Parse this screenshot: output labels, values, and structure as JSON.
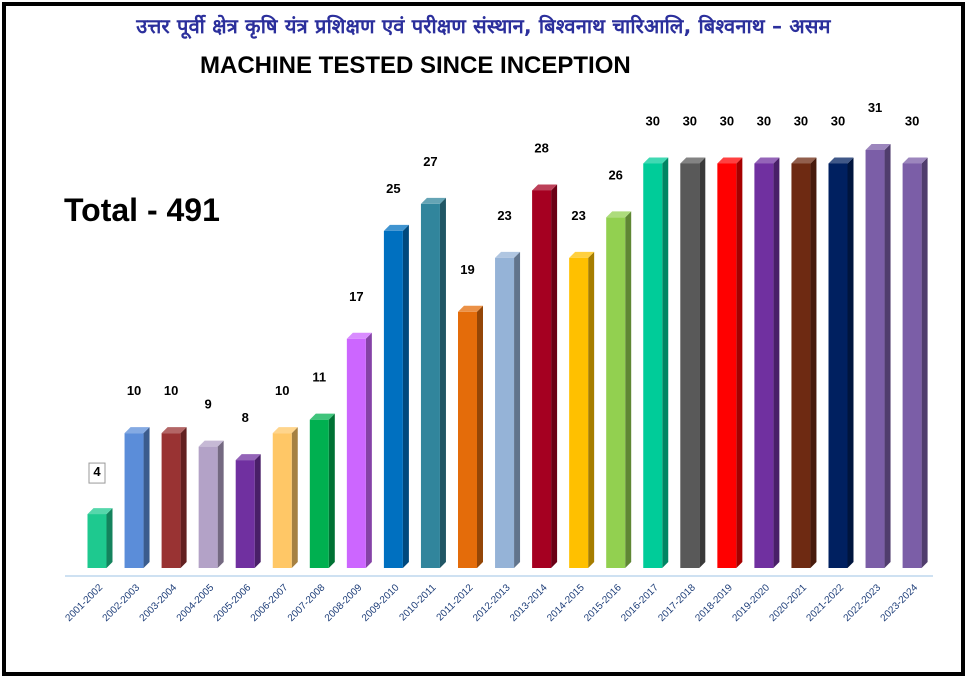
{
  "header": {
    "hindi_title": "उत्तर पूर्वी क्षेत्र कृषि यंत्र प्रशिक्षण एवं परीक्षण संस्थान, बिश्वनाथ चारिआलि, बिश्वनाथ – असम",
    "title": "MACHINE TESTED SINCE INCEPTION",
    "total": "Total - 491"
  },
  "chart_data": {
    "type": "bar",
    "title": "MACHINE TESTED SINCE INCEPTION",
    "xlabel": "",
    "ylabel": "",
    "ylim": [
      0,
      31
    ],
    "grid": false,
    "categories": [
      "2001-2002",
      "2002-2003",
      "2003-2004",
      "2004-2005",
      "2005-2006",
      "2006-2007",
      "2007-2008",
      "2008-2009",
      "2009-2010",
      "2010-2011",
      "2011-2012",
      "2012-2013",
      "2013-2014",
      "2014-2015",
      "2015-2016",
      "2016-2017",
      "2017-2018",
      "2018-2019",
      "2019-2020",
      "2020-2021",
      "2021-2022",
      "2022-2023",
      "2023-2024"
    ],
    "values": [
      4,
      10,
      10,
      9,
      8,
      10,
      11,
      17,
      25,
      27,
      19,
      23,
      28,
      23,
      26,
      30,
      30,
      30,
      30,
      30,
      30,
      31,
      30
    ],
    "colors": [
      "#1ec98f",
      "#5b8dd9",
      "#993333",
      "#b3a2c7",
      "#7030a0",
      "#ffc766",
      "#00b050",
      "#cc66ff",
      "#0070c0",
      "#31859c",
      "#e46c0a",
      "#95b3d7",
      "#a50021",
      "#ffc000",
      "#92d050",
      "#00cc99",
      "#595959",
      "#ff0000",
      "#7030a0",
      "#6e2a12",
      "#002060",
      "#7b5ea7",
      "#7b5ea7"
    ],
    "value_label_style": {
      "boxed_first": true
    }
  }
}
